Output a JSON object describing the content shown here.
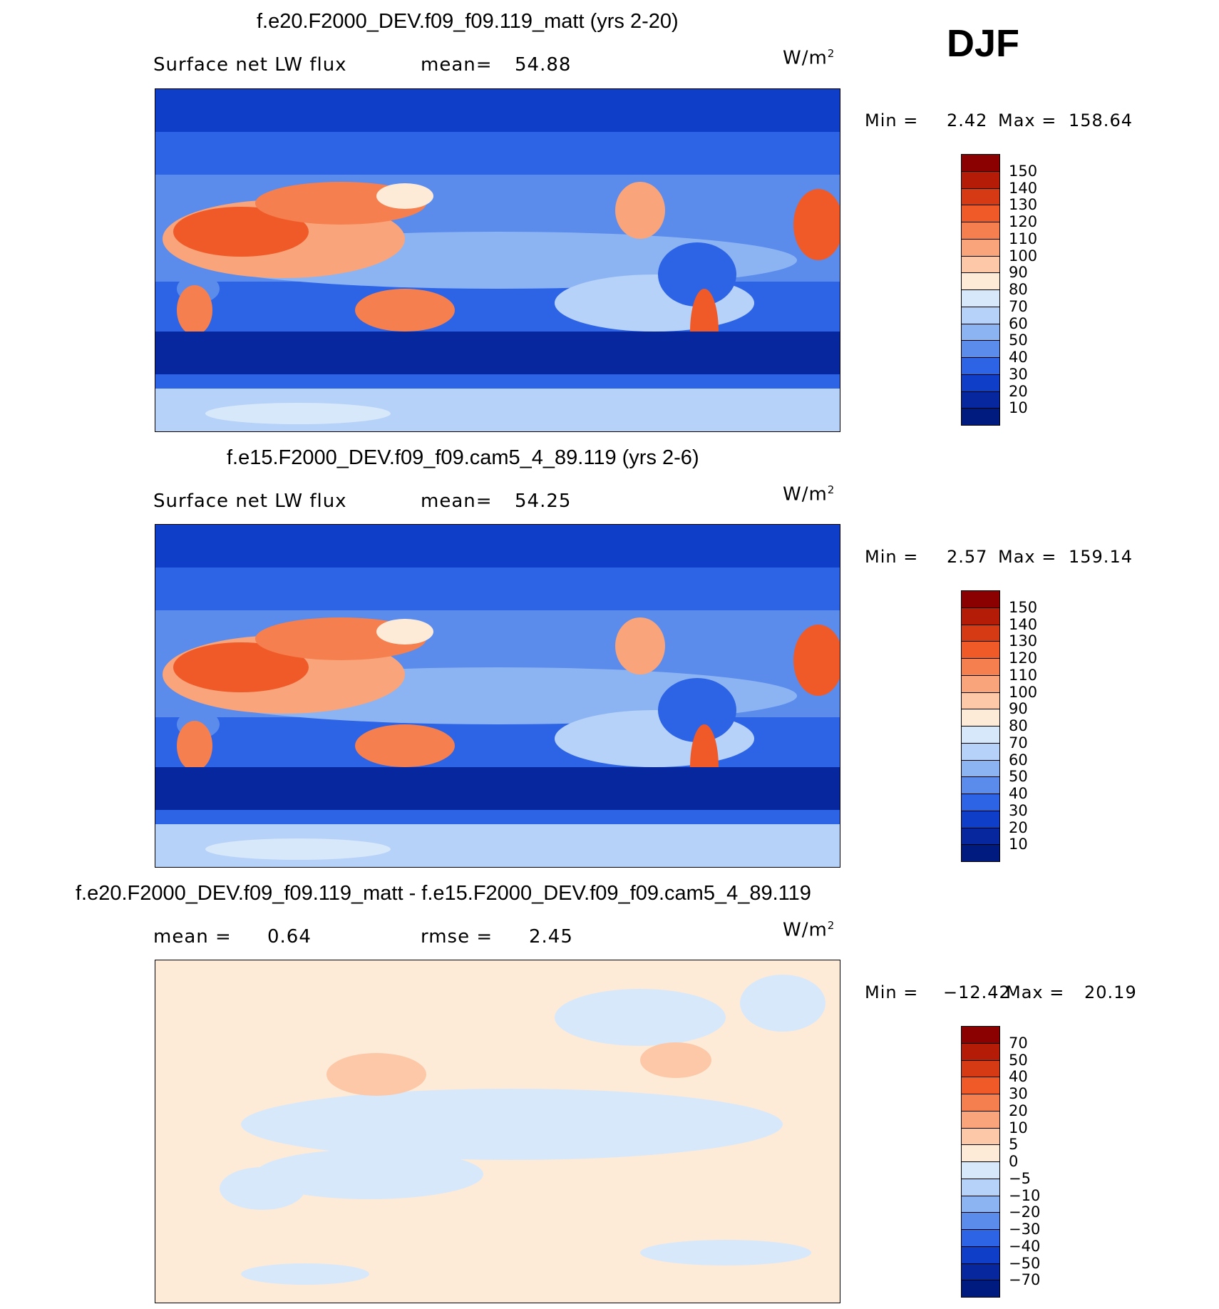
{
  "season": "DJF",
  "units_main": "W/m",
  "units_sup": "2",
  "panels": [
    {
      "title": "f.e20.F2000_DEV.f09_f09.119_matt (yrs 2-20)",
      "variable": "Surface net LW flux",
      "left_key": "mean=",
      "left_value": "54.88",
      "right_key": "",
      "right_value": "",
      "min_label": "Min =",
      "min_value": "2.42",
      "max_label": "Max =",
      "max_value": "158.64"
    },
    {
      "title": "f.e15.F2000_DEV.f09_f09.cam5_4_89.119 (yrs 2-6)",
      "variable": "Surface net LW flux",
      "left_key": "mean=",
      "left_value": "54.25",
      "right_key": "",
      "right_value": "",
      "min_label": "Min =",
      "min_value": "2.57",
      "max_label": "Max =",
      "max_value": "159.14"
    },
    {
      "title": "f.e20.F2000_DEV.f09_f09.119_matt - f.e15.F2000_DEV.f09_f09.cam5_4_89.119",
      "variable": "mean =",
      "left_key": "",
      "left_value": "0.64",
      "right_key": "rmse =",
      "right_value": "2.45",
      "min_label": "Min =",
      "min_value": "−12.42",
      "max_label": "Max =",
      "max_value": "20.19"
    }
  ],
  "chart_data": [
    {
      "type": "heatmap",
      "title": "f.e20.F2000_DEV.f09_f09.119_matt (yrs 2-20)",
      "variable": "Surface net LW flux",
      "units": "W/m2",
      "mean": 54.88,
      "min": 2.42,
      "max": 158.64,
      "colorbar_levels": [
        "150",
        "140",
        "130",
        "120",
        "110",
        "100",
        "90",
        "80",
        "70",
        "60",
        "50",
        "40",
        "30",
        "20",
        "10"
      ],
      "colorbar_colors": [
        "#8b0000",
        "#b51c08",
        "#d63a14",
        "#ef5a28",
        "#f57f4e",
        "#f9a47a",
        "#fcc8a8",
        "#fdebd8",
        "#d8e8fb",
        "#b7d2f8",
        "#8db4f2",
        "#5b8cec",
        "#2d64e6",
        "#0f3fc9",
        "#06279d",
        "#001b80"
      ]
    },
    {
      "type": "heatmap",
      "title": "f.e15.F2000_DEV.f09_f09.cam5_4_89.119 (yrs 2-6)",
      "variable": "Surface net LW flux",
      "units": "W/m2",
      "mean": 54.25,
      "min": 2.57,
      "max": 159.14,
      "colorbar_levels": [
        "150",
        "140",
        "130",
        "120",
        "110",
        "100",
        "90",
        "80",
        "70",
        "60",
        "50",
        "40",
        "30",
        "20",
        "10"
      ],
      "colorbar_colors": [
        "#8b0000",
        "#b51c08",
        "#d63a14",
        "#ef5a28",
        "#f57f4e",
        "#f9a47a",
        "#fcc8a8",
        "#fdebd8",
        "#d8e8fb",
        "#b7d2f8",
        "#8db4f2",
        "#5b8cec",
        "#2d64e6",
        "#0f3fc9",
        "#06279d",
        "#001b80"
      ]
    },
    {
      "type": "heatmap",
      "title": "f.e20.F2000_DEV.f09_f09.119_matt - f.e15.F2000_DEV.f09_f09.cam5_4_89.119",
      "units": "W/m2",
      "mean": 0.64,
      "rmse": 2.45,
      "min": -12.42,
      "max": 20.19,
      "colorbar_levels": [
        "70",
        "50",
        "40",
        "30",
        "20",
        "10",
        "5",
        "0",
        "−5",
        "−10",
        "−20",
        "−30",
        "−40",
        "−50",
        "−70"
      ],
      "colorbar_colors": [
        "#8b0000",
        "#b51c08",
        "#d63a14",
        "#ef5a28",
        "#f57f4e",
        "#f9a47a",
        "#fcc8a8",
        "#fdebd8",
        "#d8e8fb",
        "#b7d2f8",
        "#8db4f2",
        "#5b8cec",
        "#2d64e6",
        "#0f3fc9",
        "#06279d",
        "#001b80"
      ]
    }
  ]
}
